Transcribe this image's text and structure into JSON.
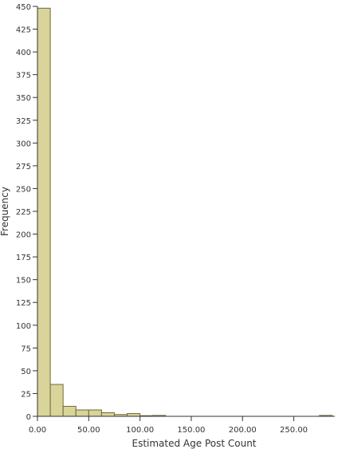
{
  "chart_data": {
    "type": "bar",
    "title": "",
    "xlabel": "Estimated Age Post Count",
    "ylabel": "Frequency",
    "xlim": [
      0,
      290
    ],
    "ylim": [
      0,
      450
    ],
    "x_ticks": [
      "0.00",
      "50.00",
      "100.00",
      "150.00",
      "200.00",
      "250.00"
    ],
    "x_tick_values": [
      0,
      50,
      100,
      150,
      200,
      250
    ],
    "y_ticks": [
      "0",
      "25",
      "50",
      "75",
      "100",
      "125",
      "150",
      "175",
      "200",
      "225",
      "250",
      "275",
      "300",
      "325",
      "350",
      "375",
      "400",
      "425",
      "450"
    ],
    "y_tick_values": [
      0,
      25,
      50,
      75,
      100,
      125,
      150,
      175,
      200,
      225,
      250,
      275,
      300,
      325,
      350,
      375,
      400,
      425,
      450
    ],
    "bins": [
      {
        "start": 0,
        "end": 12.5,
        "value": 448
      },
      {
        "start": 12.5,
        "end": 25,
        "value": 35
      },
      {
        "start": 25,
        "end": 37.5,
        "value": 11
      },
      {
        "start": 37.5,
        "end": 50,
        "value": 7
      },
      {
        "start": 50,
        "end": 62.5,
        "value": 7
      },
      {
        "start": 62.5,
        "end": 75,
        "value": 4
      },
      {
        "start": 75,
        "end": 87.5,
        "value": 2
      },
      {
        "start": 87.5,
        "end": 100,
        "value": 3
      },
      {
        "start": 100,
        "end": 112.5,
        "value": 0
      },
      {
        "start": 112.5,
        "end": 125,
        "value": 1
      },
      {
        "start": 275,
        "end": 287.5,
        "value": 1
      }
    ],
    "bar_color": "#d8d49a",
    "bar_stroke": "#6e6a3c",
    "grid": false,
    "legend": "none"
  }
}
